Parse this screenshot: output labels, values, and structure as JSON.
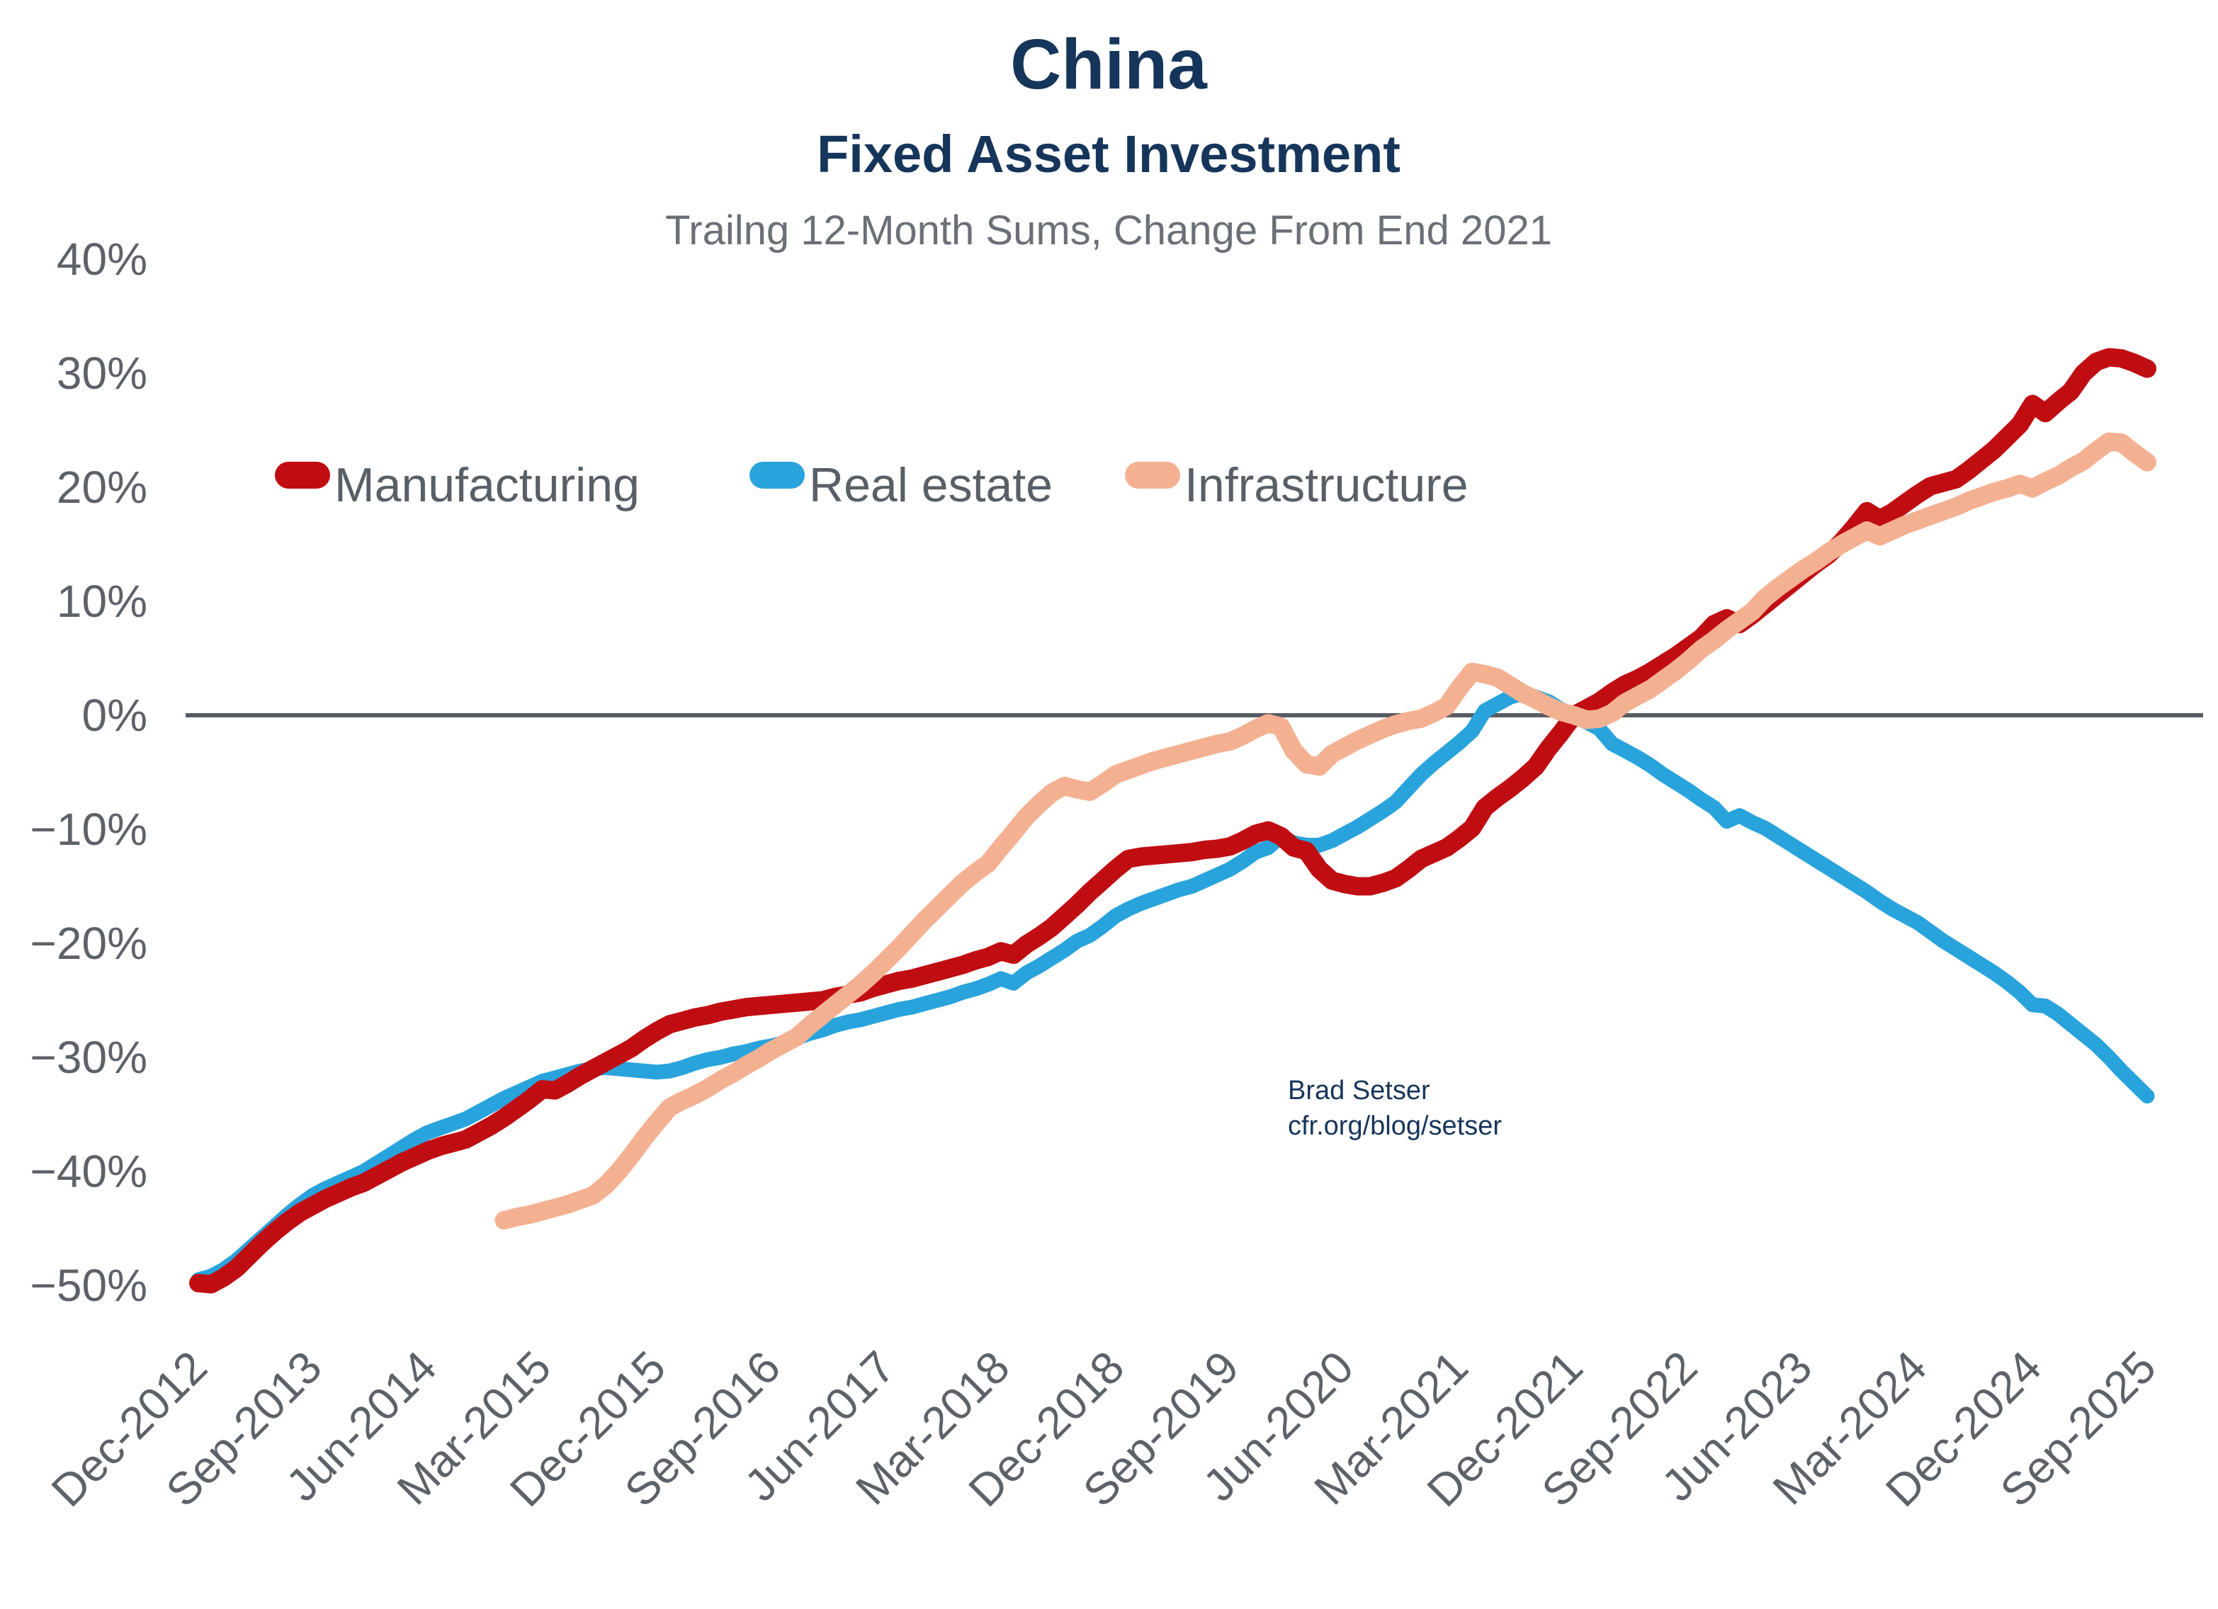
{
  "title": {
    "line1": "China",
    "line2": "Fixed Asset Investment",
    "line3": "Trailng 12-Month Sums, Change From End 2021"
  },
  "annotation": {
    "line1": "Brad Setser",
    "line2": "cfr.org/blog/setser"
  },
  "legend": {
    "items": [
      {
        "label": "Manufacturing",
        "color": "#c00d12"
      },
      {
        "label": "Real estate",
        "color": "#29a3dc"
      },
      {
        "label": "Infrastructure",
        "color": "#f4b192"
      }
    ]
  },
  "colors": {
    "title_navy": "#16355a",
    "subtitle_gray": "#6b7077",
    "axis_gray": "#5d6268",
    "zero_line": "#585d63",
    "background": "#ffffff"
  },
  "chart_data": {
    "type": "line",
    "title": "China Fixed Asset Investment",
    "subtitle": "Trailng 12-Month Sums, Change From End 2021",
    "ylabel": "",
    "xlabel": "",
    "ylim": [
      -50,
      40
    ],
    "y_tick_labels": [
      "40%",
      "30%",
      "20%",
      "10%",
      "0%",
      "−10%",
      "−20%",
      "−30%",
      "−40%",
      "−50%"
    ],
    "y_tick_values": [
      40,
      30,
      20,
      10,
      0,
      -10,
      -20,
      -30,
      -40,
      -50
    ],
    "grid": "zero-line-only",
    "legend_position": "inside-upper-left",
    "x_tick_every_months": 9,
    "x_tick_labels": [
      "Dec-2012",
      "Sep-2013",
      "Jun-2014",
      "Mar-2015",
      "Dec-2015",
      "Sep-2016",
      "Jun-2017",
      "Mar-2018",
      "Dec-2018",
      "Sep-2019",
      "Jun-2020",
      "Mar-2021",
      "Dec-2021",
      "Sep-2022",
      "Jun-2023",
      "Mar-2024",
      "Dec-2024",
      "Sep-2025"
    ],
    "x_start_month": "Dec-2012",
    "x_end_month": "Sep-2025",
    "months": [
      "Dec-2012",
      "Jan-2013",
      "Feb-2013",
      "Mar-2013",
      "Apr-2013",
      "May-2013",
      "Jun-2013",
      "Jul-2013",
      "Aug-2013",
      "Sep-2013",
      "Oct-2013",
      "Nov-2013",
      "Dec-2013",
      "Jan-2014",
      "Feb-2014",
      "Mar-2014",
      "Apr-2014",
      "May-2014",
      "Jun-2014",
      "Jul-2014",
      "Aug-2014",
      "Sep-2014",
      "Oct-2014",
      "Nov-2014",
      "Dec-2014",
      "Jan-2015",
      "Feb-2015",
      "Mar-2015",
      "Apr-2015",
      "May-2015",
      "Jun-2015",
      "Jul-2015",
      "Aug-2015",
      "Sep-2015",
      "Oct-2015",
      "Nov-2015",
      "Dec-2015",
      "Jan-2016",
      "Feb-2016",
      "Mar-2016",
      "Apr-2016",
      "May-2016",
      "Jun-2016",
      "Jul-2016",
      "Aug-2016",
      "Sep-2016",
      "Oct-2016",
      "Nov-2016",
      "Dec-2016",
      "Jan-2017",
      "Feb-2017",
      "Mar-2017",
      "Apr-2017",
      "May-2017",
      "Jun-2017",
      "Jul-2017",
      "Aug-2017",
      "Sep-2017",
      "Oct-2017",
      "Nov-2017",
      "Dec-2017",
      "Jan-2018",
      "Feb-2018",
      "Mar-2018",
      "Apr-2018",
      "May-2018",
      "Jun-2018",
      "Jul-2018",
      "Aug-2018",
      "Sep-2018",
      "Oct-2018",
      "Nov-2018",
      "Dec-2018",
      "Jan-2019",
      "Feb-2019",
      "Mar-2019",
      "Apr-2019",
      "May-2019",
      "Jun-2019",
      "Jul-2019",
      "Aug-2019",
      "Sep-2019",
      "Oct-2019",
      "Nov-2019",
      "Dec-2019",
      "Jan-2020",
      "Feb-2020",
      "Mar-2020",
      "Apr-2020",
      "May-2020",
      "Jun-2020",
      "Jul-2020",
      "Aug-2020",
      "Sep-2020",
      "Oct-2020",
      "Nov-2020",
      "Dec-2020",
      "Jan-2021",
      "Feb-2021",
      "Mar-2021",
      "Apr-2021",
      "May-2021",
      "Jun-2021",
      "Jul-2021",
      "Aug-2021",
      "Sep-2021",
      "Oct-2021",
      "Nov-2021",
      "Dec-2021",
      "Jan-2022",
      "Feb-2022",
      "Mar-2022",
      "Apr-2022",
      "May-2022",
      "Jun-2022",
      "Jul-2022",
      "Aug-2022",
      "Sep-2022",
      "Oct-2022",
      "Nov-2022",
      "Dec-2022",
      "Jan-2023",
      "Feb-2023",
      "Mar-2023",
      "Apr-2023",
      "May-2023",
      "Jun-2023",
      "Jul-2023",
      "Aug-2023",
      "Sep-2023",
      "Oct-2023",
      "Nov-2023",
      "Dec-2023",
      "Jan-2024",
      "Feb-2024",
      "Mar-2024",
      "Apr-2024",
      "May-2024",
      "Jun-2024",
      "Jul-2024",
      "Aug-2024",
      "Sep-2024",
      "Oct-2024",
      "Nov-2024",
      "Dec-2024",
      "Jan-2025",
      "Feb-2025",
      "Mar-2025",
      "Apr-2025",
      "May-2025",
      "Jun-2025",
      "Jul-2025",
      "Aug-2025",
      "Sep-2025"
    ],
    "series": [
      {
        "name": "Manufacturing",
        "color": "#c00d12",
        "stroke_width": 26,
        "values": [
          -49.8,
          -49.9,
          -49.3,
          -48.5,
          -47.4,
          -46.3,
          -45.3,
          -44.4,
          -43.6,
          -43.0,
          -42.4,
          -41.9,
          -41.4,
          -41.0,
          -40.4,
          -39.8,
          -39.2,
          -38.7,
          -38.2,
          -37.8,
          -37.5,
          -37.2,
          -36.6,
          -36.0,
          -35.3,
          -34.5,
          -33.7,
          -32.8,
          -32.9,
          -32.3,
          -31.6,
          -31.0,
          -30.4,
          -29.8,
          -29.2,
          -28.4,
          -27.7,
          -27.1,
          -26.8,
          -26.5,
          -26.3,
          -26.0,
          -25.8,
          -25.6,
          -25.5,
          -25.4,
          -25.3,
          -25.2,
          -25.1,
          -25.0,
          -24.7,
          -24.5,
          -24.3,
          -23.9,
          -23.6,
          -23.3,
          -23.1,
          -22.8,
          -22.5,
          -22.2,
          -21.9,
          -21.5,
          -21.2,
          -20.7,
          -21.0,
          -20.1,
          -19.4,
          -18.6,
          -17.6,
          -16.6,
          -15.5,
          -14.5,
          -13.5,
          -12.6,
          -12.4,
          -12.3,
          -12.2,
          -12.1,
          -12.0,
          -11.8,
          -11.7,
          -11.5,
          -11.0,
          -10.4,
          -10.1,
          -10.6,
          -11.6,
          -11.9,
          -13.5,
          -14.5,
          -14.8,
          -15.0,
          -15.0,
          -14.7,
          -14.3,
          -13.5,
          -12.6,
          -12.1,
          -11.6,
          -10.8,
          -9.9,
          -8.1,
          -7.2,
          -6.4,
          -5.5,
          -4.5,
          -2.9,
          -1.5,
          0.0,
          0.6,
          1.2,
          2.0,
          2.7,
          3.2,
          3.8,
          4.5,
          5.2,
          6.0,
          6.8,
          8.0,
          8.5,
          8.0,
          8.8,
          9.7,
          10.6,
          11.5,
          12.4,
          13.3,
          14.1,
          15.2,
          16.5,
          17.9,
          17.2,
          17.8,
          18.6,
          19.4,
          20.1,
          20.4,
          20.7,
          21.5,
          22.4,
          23.3,
          24.4,
          25.5,
          27.3,
          26.5,
          27.5,
          28.4,
          30.0,
          31.0,
          31.4,
          31.3,
          30.9,
          30.4
        ]
      },
      {
        "name": "Real estate",
        "color": "#29a3dc",
        "stroke_width": 21,
        "values": [
          -49.5,
          -49.2,
          -48.6,
          -47.8,
          -46.8,
          -45.8,
          -44.8,
          -43.8,
          -42.9,
          -42.1,
          -41.5,
          -41.0,
          -40.5,
          -40.0,
          -39.3,
          -38.6,
          -37.9,
          -37.2,
          -36.6,
          -36.2,
          -35.8,
          -35.4,
          -34.8,
          -34.2,
          -33.6,
          -33.1,
          -32.6,
          -32.1,
          -31.8,
          -31.5,
          -31.2,
          -31.0,
          -30.9,
          -31.0,
          -31.1,
          -31.2,
          -31.3,
          -31.2,
          -30.9,
          -30.5,
          -30.2,
          -30.0,
          -29.7,
          -29.5,
          -29.2,
          -29.0,
          -28.7,
          -28.3,
          -27.9,
          -27.6,
          -27.2,
          -26.9,
          -26.7,
          -26.4,
          -26.1,
          -25.8,
          -25.6,
          -25.3,
          -25.0,
          -24.7,
          -24.3,
          -24.0,
          -23.6,
          -23.1,
          -23.5,
          -22.6,
          -22.0,
          -21.3,
          -20.6,
          -19.8,
          -19.3,
          -18.5,
          -17.6,
          -17.0,
          -16.5,
          -16.1,
          -15.7,
          -15.3,
          -15.0,
          -14.5,
          -14.0,
          -13.5,
          -12.8,
          -12.0,
          -11.6,
          -10.6,
          -11.2,
          -11.4,
          -11.4,
          -11.0,
          -10.4,
          -9.8,
          -9.1,
          -8.4,
          -7.6,
          -6.4,
          -5.2,
          -4.2,
          -3.3,
          -2.4,
          -1.4,
          0.4,
          1.0,
          1.6,
          1.9,
          1.6,
          1.2,
          0.5,
          0.0,
          -0.6,
          -1.2,
          -2.5,
          -3.1,
          -3.7,
          -4.4,
          -5.2,
          -5.9,
          -6.6,
          -7.4,
          -8.1,
          -9.3,
          -8.8,
          -9.4,
          -9.9,
          -10.6,
          -11.3,
          -12.0,
          -12.7,
          -13.4,
          -14.1,
          -14.8,
          -15.5,
          -16.3,
          -17.0,
          -17.6,
          -18.2,
          -19.0,
          -19.8,
          -20.5,
          -21.2,
          -21.9,
          -22.6,
          -23.4,
          -24.3,
          -25.4,
          -25.5,
          -26.2,
          -27.1,
          -28.0,
          -28.9,
          -30.0,
          -31.2,
          -32.3,
          -33.4
        ]
      },
      {
        "name": "Infrastructure",
        "color": "#f4b192",
        "stroke_width": 26,
        "values": [
          null,
          null,
          null,
          null,
          null,
          null,
          null,
          null,
          null,
          null,
          null,
          null,
          null,
          null,
          null,
          null,
          null,
          null,
          null,
          null,
          null,
          null,
          null,
          null,
          -44.3,
          -44.0,
          -43.8,
          -43.5,
          -43.2,
          -42.9,
          -42.5,
          -42.1,
          -41.2,
          -40.0,
          -38.6,
          -37.1,
          -35.7,
          -34.4,
          -33.8,
          -33.3,
          -32.7,
          -32.0,
          -31.4,
          -30.7,
          -30.1,
          -29.4,
          -28.8,
          -28.2,
          -27.2,
          -26.3,
          -25.4,
          -24.5,
          -23.6,
          -22.6,
          -21.5,
          -20.4,
          -19.2,
          -18.0,
          -16.9,
          -15.8,
          -14.7,
          -13.8,
          -13.0,
          -11.6,
          -10.3,
          -8.9,
          -7.8,
          -6.8,
          -6.2,
          -6.5,
          -6.7,
          -6.0,
          -5.2,
          -4.8,
          -4.4,
          -4.0,
          -3.7,
          -3.4,
          -3.1,
          -2.8,
          -2.5,
          -2.3,
          -1.8,
          -1.2,
          -0.7,
          -1.0,
          -3.1,
          -4.3,
          -4.5,
          -3.4,
          -2.8,
          -2.2,
          -1.7,
          -1.2,
          -0.8,
          -0.5,
          -0.3,
          0.2,
          0.8,
          2.4,
          3.8,
          3.6,
          3.3,
          2.6,
          1.9,
          1.4,
          0.8,
          0.3,
          0.0,
          -0.4,
          -0.3,
          0.2,
          1.1,
          1.7,
          2.3,
          3.1,
          3.9,
          4.8,
          5.8,
          6.6,
          7.5,
          8.3,
          9.1,
          10.3,
          11.2,
          12.0,
          12.8,
          13.5,
          14.3,
          15.0,
          15.6,
          16.2,
          15.7,
          16.2,
          16.7,
          17.1,
          17.5,
          17.9,
          18.3,
          18.8,
          19.2,
          19.6,
          19.9,
          20.3,
          19.9,
          20.5,
          21.0,
          21.7,
          22.3,
          23.2,
          24.0,
          23.9,
          23.0,
          22.2
        ]
      }
    ]
  }
}
